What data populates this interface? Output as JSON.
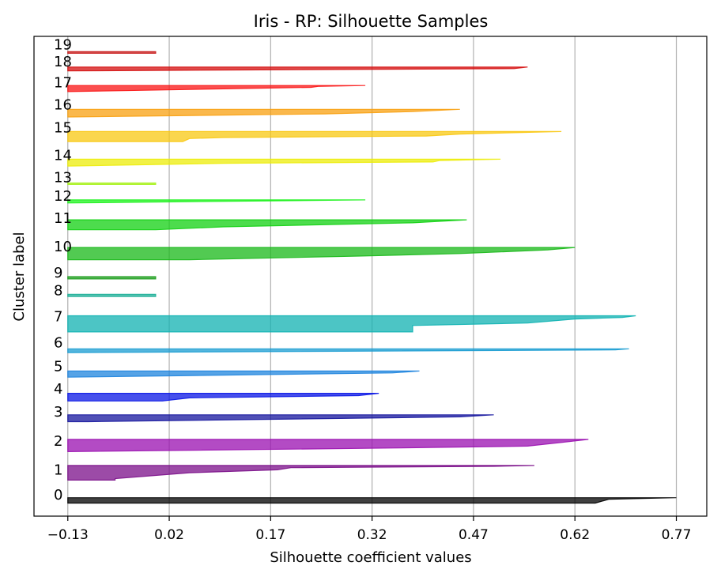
{
  "chart_data": {
    "type": "area",
    "title": "Iris - RP: Silhouette Samples",
    "xlabel": "Silhouette coefficient values",
    "ylabel": "Cluster label",
    "xlim": [
      -0.18,
      0.815
    ],
    "ylim": [
      0,
      62.5
    ],
    "xticks": [
      -0.13,
      0.02,
      0.17,
      0.32,
      0.47,
      0.62,
      0.77
    ],
    "xtick_labels": [
      "−0.13",
      "0.02",
      "0.17",
      "0.32",
      "0.47",
      "0.62",
      "0.77"
    ],
    "grid": "vertical lines at x ticks",
    "baseline": -0.13,
    "clusters": [
      {
        "label": "0",
        "color": "#000000",
        "y0": 1.7,
        "y1": 2.4,
        "label_y": 2.8,
        "profile": [
          [
            0,
            0.77
          ],
          [
            0.3,
            0.67
          ],
          [
            1,
            0.65
          ]
        ]
      },
      {
        "label": "1",
        "color": "#7B0F8A",
        "y0": 4.7,
        "y1": 6.6,
        "label_y": 6.0,
        "profile": [
          [
            0,
            0.56
          ],
          [
            0.06,
            0.5
          ],
          [
            0.15,
            0.2
          ],
          [
            0.3,
            0.18
          ],
          [
            0.5,
            0.05
          ],
          [
            0.9,
            -0.06
          ],
          [
            1,
            -0.06
          ]
        ]
      },
      {
        "label": "2",
        "color": "#9A0FB0",
        "y0": 8.4,
        "y1": 10.0,
        "label_y": 9.8,
        "profile": [
          [
            0,
            0.64
          ],
          [
            0.25,
            0.6
          ],
          [
            0.55,
            0.55
          ],
          [
            0.7,
            0.35
          ],
          [
            1,
            -0.13
          ]
        ]
      },
      {
        "label": "3",
        "color": "#16169E",
        "y0": 12.3,
        "y1": 13.2,
        "label_y": 13.6,
        "profile": [
          [
            0,
            0.5
          ],
          [
            0.3,
            0.45
          ],
          [
            1,
            -0.1
          ]
        ]
      },
      {
        "label": "4",
        "color": "#0A16E6",
        "y0": 15.0,
        "y1": 16.0,
        "label_y": 16.6,
        "profile": [
          [
            0,
            0.33
          ],
          [
            0.3,
            0.3
          ],
          [
            0.6,
            0.05
          ],
          [
            1,
            0.01
          ]
        ]
      },
      {
        "label": "5",
        "color": "#1E84DE",
        "y0": 18.1,
        "y1": 18.9,
        "label_y": 19.5,
        "profile": [
          [
            0,
            0.39
          ],
          [
            0.3,
            0.35
          ],
          [
            1,
            -0.13
          ]
        ]
      },
      {
        "label": "6",
        "color": "#1A9CD2",
        "y0": 21.3,
        "y1": 21.8,
        "label_y": 22.6,
        "profile": [
          [
            0,
            0.7
          ],
          [
            0.3,
            0.68
          ],
          [
            1,
            -0.13
          ]
        ]
      },
      {
        "label": "7",
        "color": "#10B2B2",
        "y0": 24.0,
        "y1": 26.1,
        "label_y": 26.0,
        "profile": [
          [
            0,
            0.71
          ],
          [
            0.1,
            0.69
          ],
          [
            0.2,
            0.62
          ],
          [
            0.45,
            0.55
          ],
          [
            0.6,
            0.38
          ],
          [
            1,
            0.38
          ]
        ]
      },
      {
        "label": "8",
        "color": "#1AAE96",
        "y0": 28.6,
        "y1": 28.9,
        "label_y": 29.4,
        "profile": [
          [
            0,
            -0.0
          ],
          [
            1,
            -0.0
          ]
        ]
      },
      {
        "label": "9",
        "color": "#1E9E1E",
        "y0": 30.9,
        "y1": 31.2,
        "label_y": 31.7,
        "profile": [
          [
            0,
            -0.0
          ],
          [
            1,
            -0.0
          ]
        ]
      },
      {
        "label": "10",
        "color": "#18B818",
        "y0": 33.4,
        "y1": 35.0,
        "label_y": 35.1,
        "profile": [
          [
            0,
            0.62
          ],
          [
            0.2,
            0.58
          ],
          [
            0.5,
            0.45
          ],
          [
            0.7,
            0.3
          ],
          [
            1,
            0.05
          ]
        ]
      },
      {
        "label": "11",
        "color": "#12D012",
        "y0": 37.3,
        "y1": 38.6,
        "label_y": 38.8,
        "profile": [
          [
            0,
            0.46
          ],
          [
            0.3,
            0.38
          ],
          [
            0.7,
            0.1
          ],
          [
            1,
            -0.0
          ]
        ]
      },
      {
        "label": "12",
        "color": "#1EF21E",
        "y0": 40.8,
        "y1": 41.2,
        "label_y": 41.7,
        "profile": [
          [
            0,
            0.31
          ],
          [
            1,
            -0.13
          ]
        ]
      },
      {
        "label": "13",
        "color": "#A8F21E",
        "y0": 43.2,
        "y1": 43.4,
        "label_y": 44.1,
        "profile": [
          [
            0,
            -0.0
          ],
          [
            1,
            -0.0
          ]
        ]
      },
      {
        "label": "14",
        "color": "#ECEC0A",
        "y0": 45.6,
        "y1": 46.5,
        "label_y": 47.0,
        "profile": [
          [
            0,
            0.51
          ],
          [
            0.2,
            0.42
          ],
          [
            0.4,
            0.41
          ],
          [
            0.6,
            0.1
          ],
          [
            1,
            -0.13
          ]
        ]
      },
      {
        "label": "15",
        "color": "#F8C812",
        "y0": 48.8,
        "y1": 50.1,
        "label_y": 50.6,
        "profile": [
          [
            0,
            0.6
          ],
          [
            0.25,
            0.45
          ],
          [
            0.45,
            0.4
          ],
          [
            0.6,
            0.1
          ],
          [
            0.7,
            0.05
          ],
          [
            1,
            0.04
          ]
        ]
      },
      {
        "label": "16",
        "color": "#F8A010",
        "y0": 52.0,
        "y1": 53.0,
        "label_y": 53.6,
        "profile": [
          [
            0,
            0.45
          ],
          [
            0.3,
            0.38
          ],
          [
            0.6,
            0.25
          ],
          [
            1,
            -0.13
          ]
        ]
      },
      {
        "label": "17",
        "color": "#FA1414",
        "y0": 55.3,
        "y1": 56.1,
        "label_y": 56.5,
        "profile": [
          [
            0,
            0.31
          ],
          [
            0.15,
            0.24
          ],
          [
            0.3,
            0.23
          ],
          [
            1,
            -0.13
          ]
        ]
      },
      {
        "label": "18",
        "color": "#D40E0E",
        "y0": 58.0,
        "y1": 58.5,
        "label_y": 59.2,
        "profile": [
          [
            0,
            0.55
          ],
          [
            0.4,
            0.53
          ],
          [
            1,
            -0.13
          ]
        ]
      },
      {
        "label": "19",
        "color": "#C81A1A",
        "y0": 60.3,
        "y1": 60.5,
        "label_y": 61.4,
        "profile": [
          [
            0,
            -0.0
          ],
          [
            1,
            -0.0
          ]
        ]
      }
    ]
  }
}
